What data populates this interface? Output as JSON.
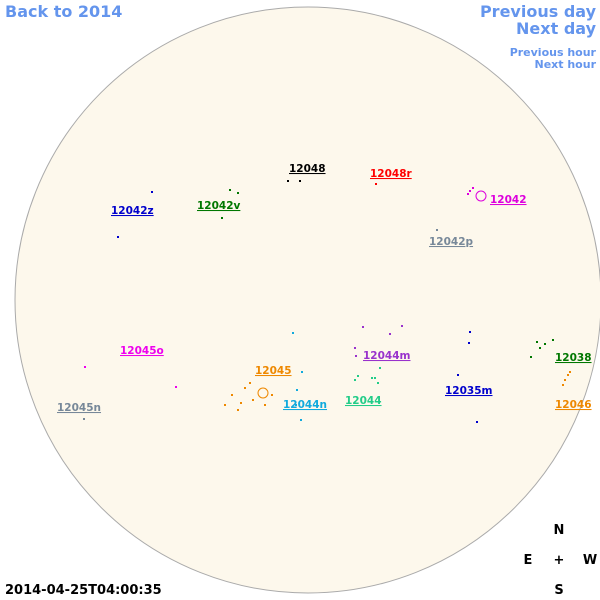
{
  "navigation": {
    "back": "Back to 2014",
    "previous_day": "Previous day",
    "next_day": "Next day",
    "previous_hour": "Previous hour",
    "next_hour": "Next hour"
  },
  "regions": [
    {
      "label": "12048",
      "color": "#000000"
    },
    {
      "label": "12048r",
      "color": "#ff0000"
    },
    {
      "label": "12042z",
      "color": "#0000cc"
    },
    {
      "label": "12042v",
      "color": "#007700"
    },
    {
      "label": "12042",
      "color": "#dd00dd"
    },
    {
      "label": "12042p",
      "color": "#778899"
    },
    {
      "label": "12045o",
      "color": "#ee00ee"
    },
    {
      "label": "12044m",
      "color": "#9932cc"
    },
    {
      "label": "12038",
      "color": "#007700"
    },
    {
      "label": "12045",
      "color": "#ee8800"
    },
    {
      "label": "12035m",
      "color": "#0000cc"
    },
    {
      "label": "12044",
      "color": "#22cc88"
    },
    {
      "label": "12044n",
      "color": "#11aadd"
    },
    {
      "label": "12046",
      "color": "#ee8800"
    },
    {
      "label": "12045n",
      "color": "#778899"
    }
  ],
  "timestamp": "2014-04-25T04:00:35",
  "compass": {
    "north": "N",
    "east": "E",
    "center": "+",
    "west": "W",
    "south": "S"
  }
}
